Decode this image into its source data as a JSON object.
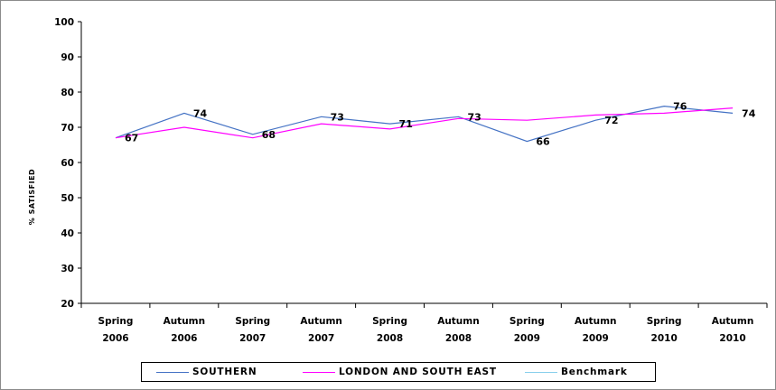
{
  "chart_data": {
    "type": "line",
    "ylabel": "% SATISFIED",
    "ylim": [
      20,
      100
    ],
    "yticks": [
      "20",
      "30",
      "40",
      "50",
      "60",
      "70",
      "80",
      "90",
      "100"
    ],
    "categories": [
      [
        "Spring",
        "2006"
      ],
      [
        "Autumn",
        "2006"
      ],
      [
        "Spring",
        "2007"
      ],
      [
        "Autumn",
        "2007"
      ],
      [
        "Spring",
        "2008"
      ],
      [
        "Autumn",
        "2008"
      ],
      [
        "Spring",
        "2009"
      ],
      [
        "Autumn",
        "2009"
      ],
      [
        "Spring",
        "2010"
      ],
      [
        "Autumn",
        "2010"
      ]
    ],
    "series": [
      {
        "name": "SOUTHERN",
        "color": "#4472c4",
        "values": [
          67,
          74,
          68,
          73,
          71,
          73,
          66,
          72,
          76,
          74
        ]
      },
      {
        "name": "LONDON AND SOUTH EAST",
        "color": "#ff00ff",
        "values": [
          67,
          70,
          67,
          71,
          69.5,
          72.5,
          72,
          73.5,
          74,
          75.5
        ]
      },
      {
        "name": "Benchmark",
        "color": "#87ceeb",
        "values": [
          null,
          null,
          null,
          null,
          null,
          null,
          null,
          null,
          null,
          null
        ]
      }
    ],
    "data_labels": [
      "67",
      "74",
      "68",
      "73",
      "71",
      "73",
      "66",
      "72",
      "76",
      "74"
    ],
    "grid": false,
    "legend": "bottom"
  }
}
